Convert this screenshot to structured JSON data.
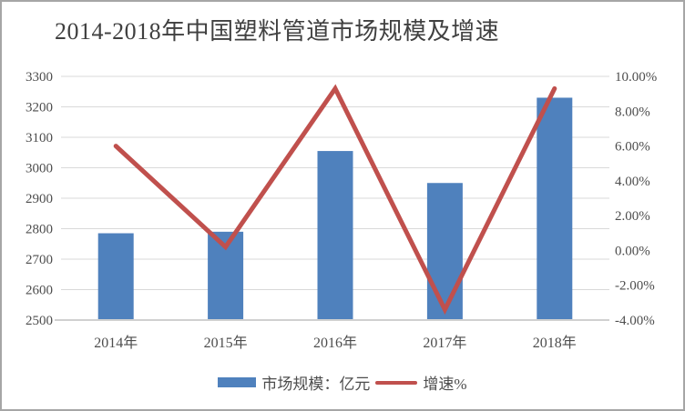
{
  "frame": {
    "background": "#FFFFFF",
    "border_color": "#A6A6A6"
  },
  "title": {
    "text": "2014-2018年中国塑料管道市场规模及增速",
    "color": "#404040"
  },
  "legend": {
    "position": "bottom",
    "items": [
      {
        "swatch": "bar",
        "label": "市场规模：亿元",
        "color": "#4F81BD"
      },
      {
        "swatch": "line",
        "label": "增速%",
        "color": "#C0504D"
      }
    ]
  },
  "chart_data": {
    "type": "combo",
    "title": "2014-2018年中国塑料管道市场规模及增速",
    "categories": [
      "2014年",
      "2015年",
      "2016年",
      "2017年",
      "2018年"
    ],
    "series": [
      {
        "name": "市场规模：亿元",
        "type": "bar",
        "axis": "left",
        "color": "#4F81BD",
        "values": [
          2785,
          2790,
          3055,
          2950,
          3230
        ]
      },
      {
        "name": "增速%",
        "type": "line",
        "axis": "right",
        "color": "#C0504D",
        "values": [
          6.0,
          0.2,
          9.3,
          -3.4,
          9.3
        ]
      }
    ],
    "left_axis": {
      "min": 2500,
      "max": 3300,
      "step": 100,
      "tick_labels": [
        "3300",
        "3200",
        "3100",
        "3000",
        "2900",
        "2800",
        "2700",
        "2600",
        "2500"
      ]
    },
    "right_axis": {
      "min": -4,
      "max": 10,
      "step": 2,
      "tick_labels": [
        "10.00%",
        "8.00%",
        "6.00%",
        "4.00%",
        "2.00%",
        "0.00%",
        "-2.00%",
        "-4.00%"
      ]
    },
    "grid": true,
    "legend_position": "bottom",
    "gridline_color": "#D9D9D9",
    "axisline_color": "#D0D0D0",
    "label_color": "#4D4D4D"
  }
}
